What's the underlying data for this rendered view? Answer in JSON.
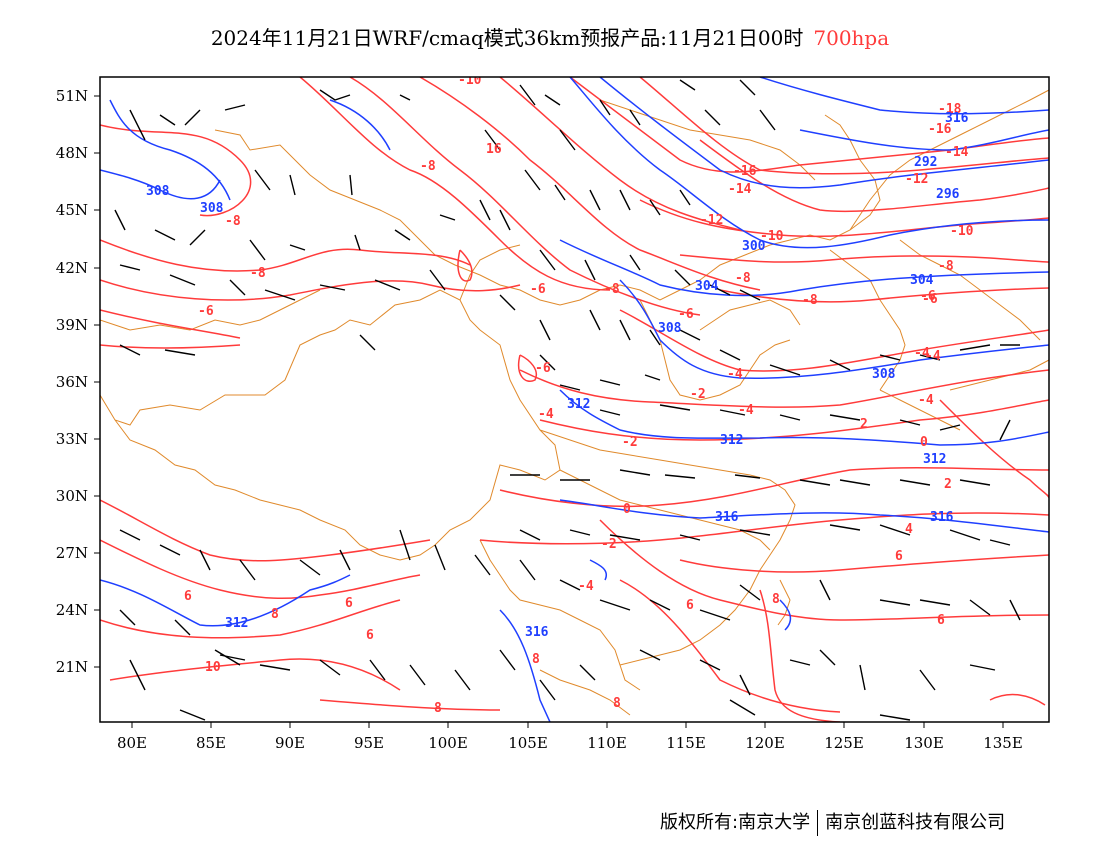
{
  "header": {
    "title": "2024年11月21日WRF/cmaq模式36km预报产品:11月21日00时",
    "level": "700hpa"
  },
  "footer": {
    "copyright": "版权所有:南京大学",
    "company": "南京创蓝科技有限公司"
  },
  "colors": {
    "temperature": "#ff3b3b",
    "geopotential": "#1f3fff",
    "border": "#e08a2c",
    "barb": "#000000"
  },
  "map": {
    "lat_labels": [
      "51N",
      "48N",
      "45N",
      "42N",
      "39N",
      "36N",
      "33N",
      "30N",
      "27N",
      "24N",
      "21N"
    ],
    "lon_labels": [
      "80E",
      "85E",
      "90E",
      "95E",
      "100E",
      "105E",
      "110E",
      "115E",
      "120E",
      "125E",
      "130E",
      "135E"
    ],
    "temp_labels": [
      "-10",
      "-8",
      "-8",
      "-8",
      "-6",
      "-6",
      "-8",
      "-6",
      "-6",
      "-4",
      "-4",
      "-2",
      "0",
      "2",
      "-4",
      "-4",
      "-6",
      "-8",
      "-8",
      "-10",
      "-12",
      "-14",
      "-16",
      "-16",
      "-18",
      "-14",
      "-12",
      "-10",
      "-8",
      "-6",
      "-4",
      "-2",
      "0",
      "2",
      "4",
      "6",
      "6",
      "6",
      "8",
      "8",
      "6",
      "6",
      "8",
      "10",
      "8",
      "16",
      "8",
      "6",
      "-4",
      "-4",
      "-2"
    ],
    "geo_labels": [
      "308",
      "308",
      "300",
      "304",
      "308",
      "312",
      "312",
      "316",
      "316",
      "312",
      "316",
      "308",
      "292",
      "296",
      "304",
      "312",
      "316"
    ]
  }
}
